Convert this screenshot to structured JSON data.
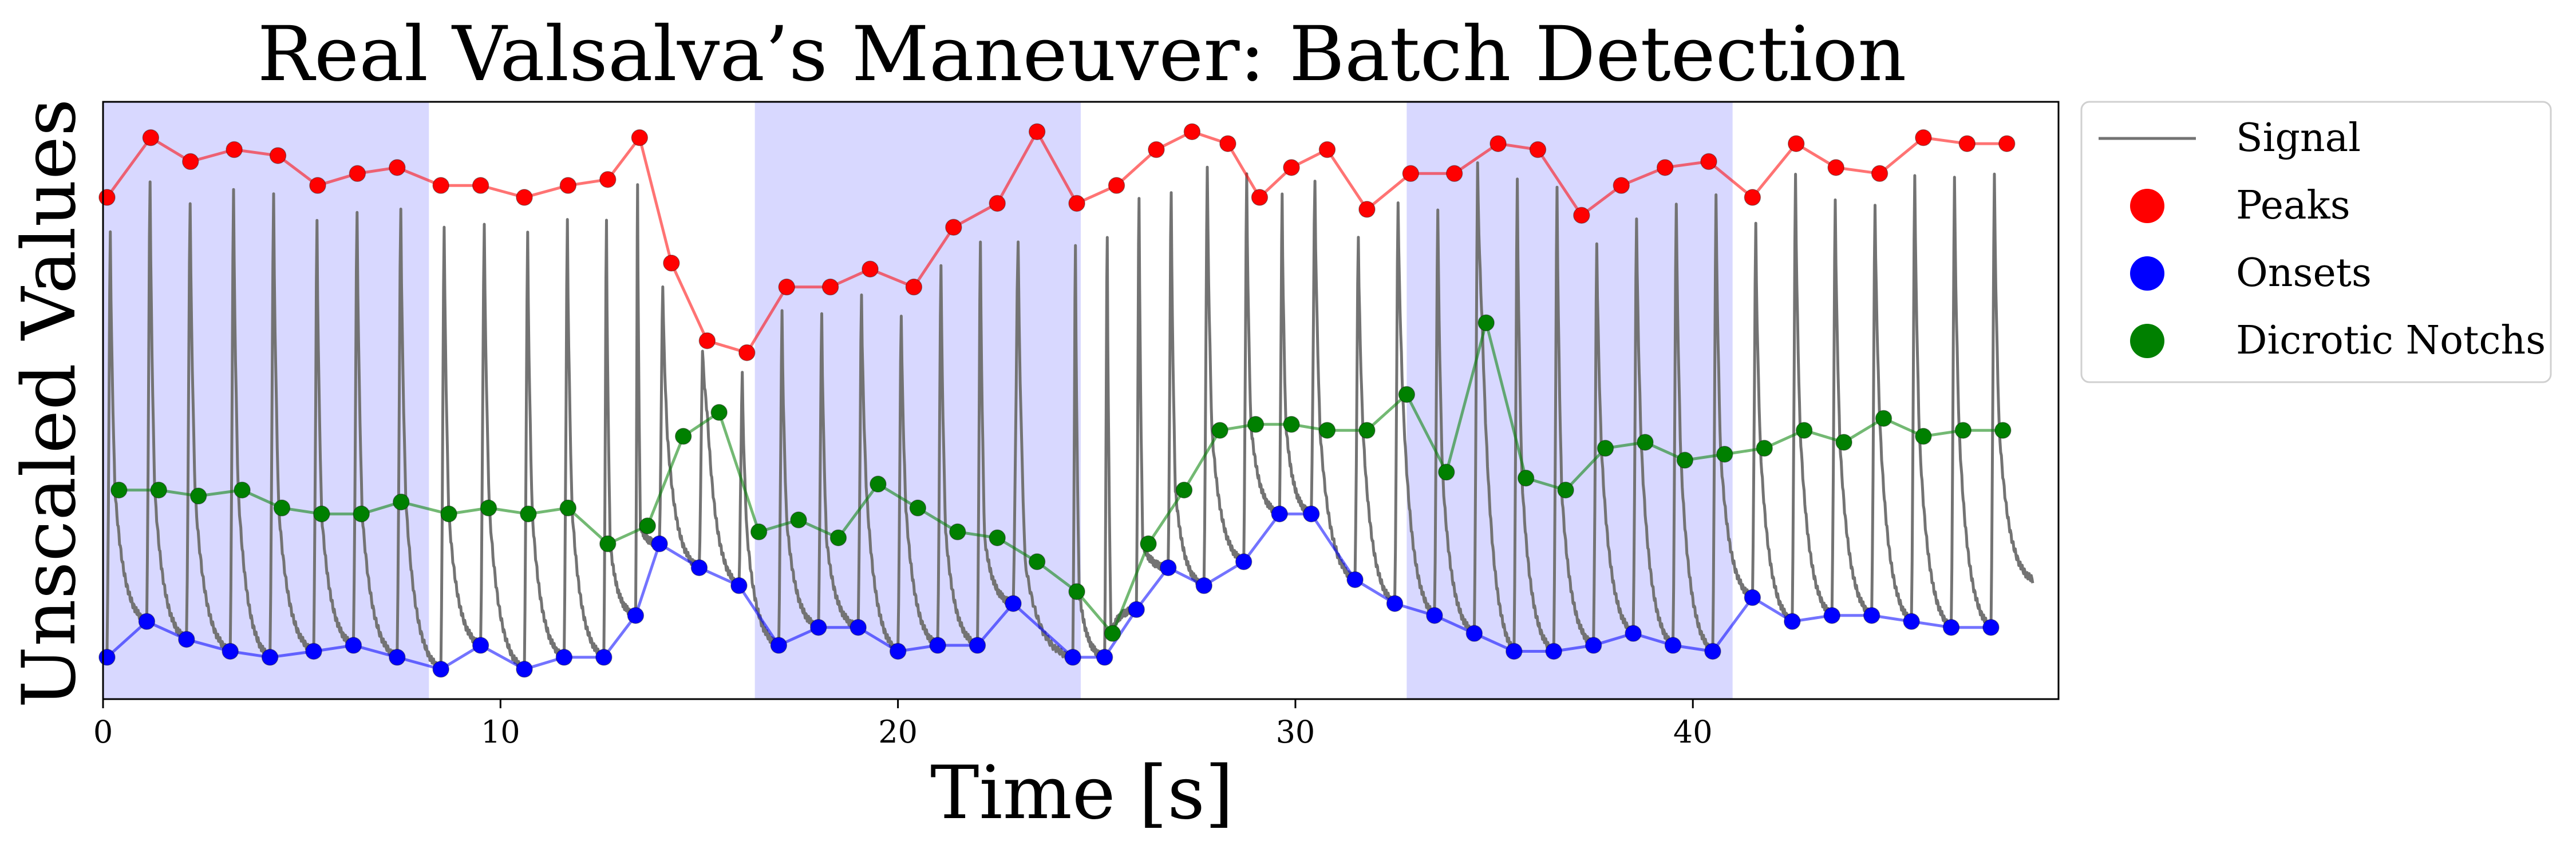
{
  "chart_data": {
    "type": "line",
    "title": "Real Valsalva’s Maneuver: Batch Detection",
    "xlabel": "Time [s]",
    "ylabel": "Unscaled Values",
    "xlim": [
      0,
      49.2
    ],
    "ylim": [
      0,
      1.0
    ],
    "x_ticks": [
      0,
      10,
      20,
      30,
      40
    ],
    "x_tick_labels": [
      "0",
      "10",
      "20",
      "30",
      "40"
    ],
    "y_ticks": [],
    "grid": false,
    "legend_position": "outside-right-top",
    "shaded_regions": [
      {
        "x0": 0,
        "x1": 8.2,
        "color": "#d8d8ff"
      },
      {
        "x0": 16.4,
        "x1": 24.6,
        "color": "#d8d8ff"
      },
      {
        "x0": 32.8,
        "x1": 41.0,
        "color": "#d8d8ff"
      }
    ],
    "series": [
      {
        "name": "Signal",
        "type": "waveform",
        "color": "#737373"
      },
      {
        "name": "Peaks",
        "color": "#ff0000",
        "x": [
          0.1,
          1.2,
          2.2,
          3.3,
          4.4,
          5.4,
          6.4,
          7.4,
          8.5,
          9.5,
          10.6,
          11.7,
          12.7,
          13.5,
          14.3,
          15.2,
          16.2,
          17.2,
          18.3,
          19.3,
          20.4,
          21.4,
          22.5,
          23.5,
          24.5,
          25.5,
          26.5,
          27.4,
          28.3,
          29.1,
          29.9,
          30.8,
          31.8,
          32.9,
          34.0,
          35.1,
          36.1,
          37.2,
          38.2,
          39.3,
          40.4,
          41.5,
          42.6,
          43.6,
          44.7,
          45.8,
          46.9,
          47.9
        ],
        "y": [
          0.84,
          0.94,
          0.9,
          0.92,
          0.91,
          0.86,
          0.88,
          0.89,
          0.86,
          0.86,
          0.84,
          0.86,
          0.87,
          0.94,
          0.73,
          0.6,
          0.58,
          0.69,
          0.69,
          0.72,
          0.69,
          0.79,
          0.83,
          0.95,
          0.83,
          0.86,
          0.92,
          0.95,
          0.93,
          0.84,
          0.89,
          0.92,
          0.82,
          0.88,
          0.88,
          0.93,
          0.92,
          0.81,
          0.86,
          0.89,
          0.9,
          0.84,
          0.93,
          0.89,
          0.88,
          0.94,
          0.93,
          0.93
        ]
      },
      {
        "name": "Onsets",
        "color": "#0000ff",
        "x": [
          0.1,
          1.1,
          2.1,
          3.2,
          4.2,
          5.3,
          6.3,
          7.4,
          8.5,
          9.5,
          10.6,
          11.6,
          12.6,
          13.4,
          14.0,
          15.0,
          16.0,
          17.0,
          18.0,
          19.0,
          20.0,
          21.0,
          22.0,
          22.9,
          24.4,
          25.2,
          26.0,
          26.8,
          27.7,
          28.7,
          29.6,
          30.4,
          31.5,
          32.5,
          33.5,
          34.5,
          35.5,
          36.5,
          37.5,
          38.5,
          39.5,
          40.5,
          41.5,
          42.5,
          43.5,
          44.5,
          45.5,
          46.5,
          47.5
        ],
        "y": [
          0.07,
          0.13,
          0.1,
          0.08,
          0.07,
          0.08,
          0.09,
          0.07,
          0.05,
          0.09,
          0.05,
          0.07,
          0.07,
          0.14,
          0.26,
          0.22,
          0.19,
          0.09,
          0.12,
          0.12,
          0.08,
          0.09,
          0.09,
          0.16,
          0.07,
          0.07,
          0.15,
          0.22,
          0.19,
          0.23,
          0.31,
          0.31,
          0.2,
          0.16,
          0.14,
          0.11,
          0.08,
          0.08,
          0.09,
          0.11,
          0.09,
          0.08,
          0.17,
          0.13,
          0.14,
          0.14,
          0.13,
          0.12,
          0.12
        ]
      },
      {
        "name": "Dicrotic Notchs",
        "color": "#008000",
        "x": [
          0.4,
          1.4,
          2.4,
          3.5,
          4.5,
          5.5,
          6.5,
          7.5,
          8.7,
          9.7,
          10.7,
          11.7,
          12.7,
          13.7,
          14.6,
          15.5,
          16.5,
          17.5,
          18.5,
          19.5,
          20.5,
          21.5,
          22.5,
          23.5,
          24.5,
          25.4,
          26.3,
          27.2,
          28.1,
          29.0,
          29.9,
          30.8,
          31.8,
          32.8,
          33.8,
          34.8,
          35.8,
          36.8,
          37.8,
          38.8,
          39.8,
          40.8,
          41.8,
          42.8,
          43.8,
          44.8,
          45.8,
          46.8,
          47.8
        ],
        "y": [
          0.35,
          0.35,
          0.34,
          0.35,
          0.32,
          0.31,
          0.31,
          0.33,
          0.31,
          0.32,
          0.31,
          0.32,
          0.26,
          0.29,
          0.44,
          0.48,
          0.28,
          0.3,
          0.27,
          0.36,
          0.32,
          0.28,
          0.27,
          0.23,
          0.18,
          0.11,
          0.26,
          0.35,
          0.45,
          0.46,
          0.46,
          0.45,
          0.45,
          0.51,
          0.38,
          0.63,
          0.37,
          0.35,
          0.42,
          0.43,
          0.4,
          0.41,
          0.42,
          0.45,
          0.43,
          0.47,
          0.44,
          0.45,
          0.45
        ]
      }
    ]
  }
}
